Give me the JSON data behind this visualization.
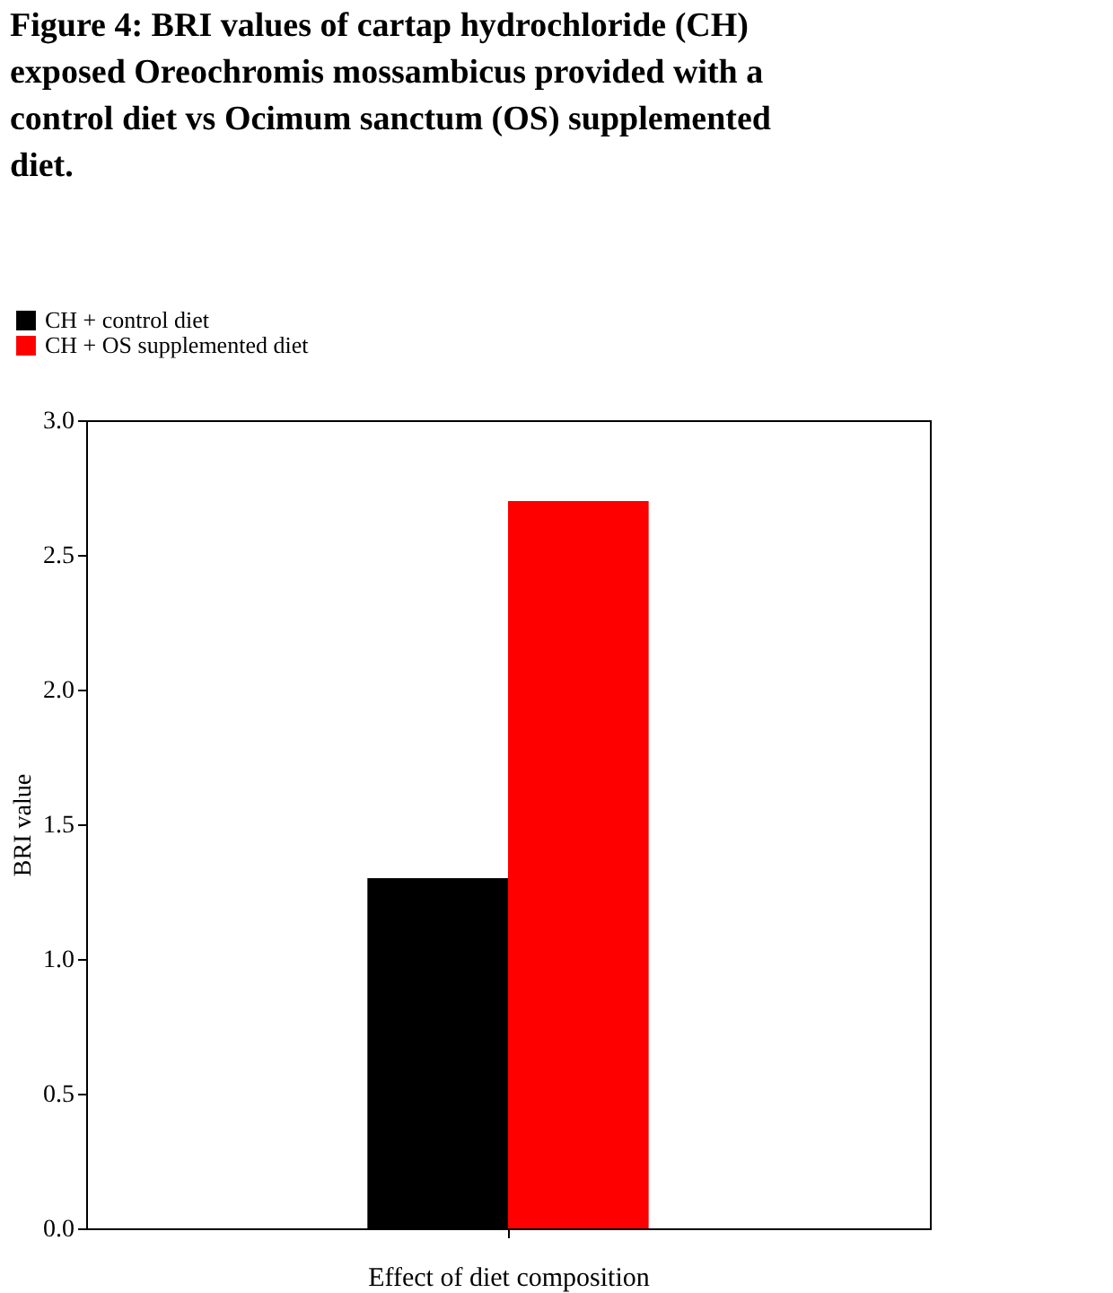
{
  "chart_data": {
    "type": "bar",
    "title": "Figure 4: BRI values of cartap hydrochloride (CH) exposed Oreochromis mossambicus provided with a control diet vs Ocimum sanctum (OS) supplemented diet.",
    "xlabel": "Effect of diet composition",
    "ylabel": "BRI value",
    "categories": [
      null
    ],
    "series": [
      {
        "name": "CH + control diet",
        "color": "#000000",
        "values": [
          1.3
        ]
      },
      {
        "name": "CH + OS supplemented diet",
        "color": "#ff0000",
        "values": [
          2.7
        ]
      }
    ],
    "ylim": [
      0,
      3
    ],
    "yticks": [
      {
        "value": 0,
        "label": "0.0"
      },
      0.5,
      {
        "value": 1,
        "label": "1.0"
      },
      1.5,
      {
        "value": 2,
        "label": "2.0"
      },
      2.5,
      {
        "value": 3,
        "label": "3.0"
      }
    ],
    "grid": false,
    "legend": "top left",
    "tick_labels": "y"
  }
}
